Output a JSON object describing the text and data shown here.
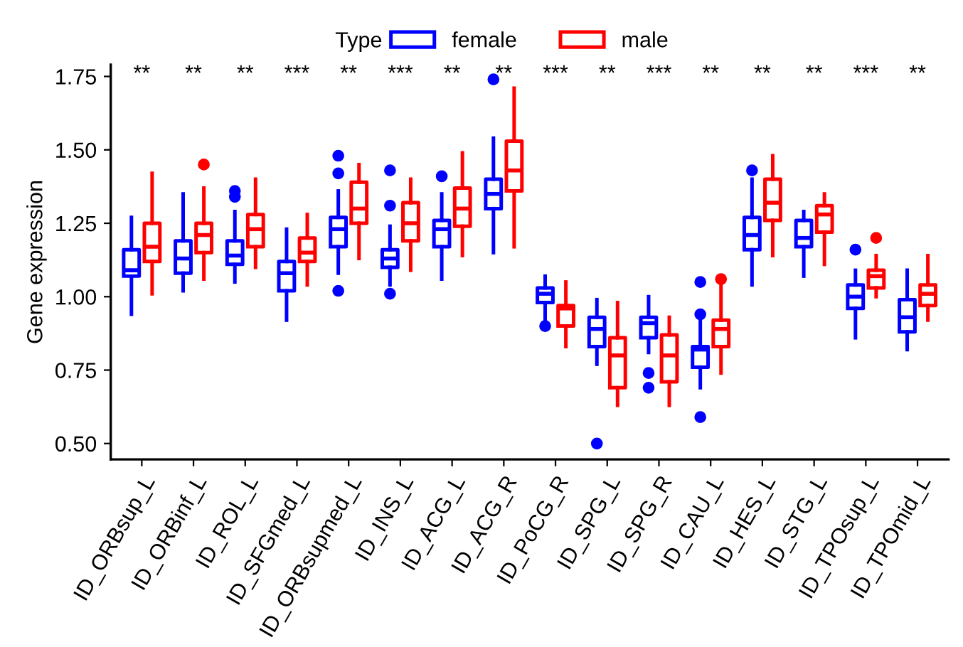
{
  "chart_data": {
    "type": "box",
    "ylabel": "Gene expression",
    "legend_title": "Type",
    "legend": "top",
    "categories": [
      "ID_ORBsup_L",
      "ID_ORBinf_L",
      "ID_ROL_L",
      "ID_SFGmed_L",
      "ID_ORBsupmed_L",
      "ID_INS_L",
      "ID_ACG_L",
      "ID_ACG_R",
      "ID_PoCG_R",
      "ID_SPG_L",
      "ID_SPG_R",
      "ID_CAU_L",
      "ID_HES_L",
      "ID_STG_L",
      "ID_TPOsup_L",
      "ID_TPOmid_L"
    ],
    "ylim": [
      0.446,
      1.79
    ],
    "yticks": [
      {
        "value": 0.5,
        "label": "0.50"
      },
      {
        "value": 0.75,
        "label": "0.75"
      },
      {
        "value": 1.0,
        "label": "1.00"
      },
      {
        "value": 1.25,
        "label": "1.25"
      },
      {
        "value": 1.5,
        "label": "1.50"
      },
      {
        "value": 1.75,
        "label": "1.75"
      }
    ],
    "series": [
      {
        "name": "female",
        "color": "#0000ff",
        "boxes": [
          {
            "low": 0.94,
            "q1": 1.07,
            "median": 1.09,
            "q3": 1.16,
            "high": 1.27
          },
          {
            "low": 1.02,
            "q1": 1.08,
            "median": 1.13,
            "q3": 1.19,
            "high": 1.35
          },
          {
            "low": 1.05,
            "q1": 1.11,
            "median": 1.14,
            "q3": 1.19,
            "high": 1.29,
            "outliers": [
              1.36,
              1.34
            ]
          },
          {
            "low": 0.92,
            "q1": 1.02,
            "median": 1.08,
            "q3": 1.12,
            "high": 1.23
          },
          {
            "low": 1.08,
            "q1": 1.17,
            "median": 1.23,
            "q3": 1.27,
            "high": 1.36,
            "outliers": [
              1.48,
              1.42,
              1.02
            ]
          },
          {
            "low": 1.04,
            "q1": 1.1,
            "median": 1.13,
            "q3": 1.16,
            "high": 1.24,
            "outliers": [
              1.43,
              1.31,
              1.01
            ]
          },
          {
            "low": 1.06,
            "q1": 1.17,
            "median": 1.23,
            "q3": 1.26,
            "high": 1.35,
            "outliers": [
              1.41
            ]
          },
          {
            "low": 1.15,
            "q1": 1.3,
            "median": 1.35,
            "q3": 1.4,
            "high": 1.54,
            "outliers": [
              1.74
            ]
          },
          {
            "low": 0.92,
            "q1": 0.98,
            "median": 1.01,
            "q3": 1.03,
            "high": 1.07,
            "outliers": [
              0.9
            ]
          },
          {
            "low": 0.77,
            "q1": 0.83,
            "median": 0.89,
            "q3": 0.93,
            "high": 0.99,
            "outliers": [
              0.5
            ]
          },
          {
            "low": 0.81,
            "q1": 0.86,
            "median": 0.91,
            "q3": 0.93,
            "high": 1.0,
            "outliers": [
              0.74,
              0.69
            ]
          },
          {
            "low": 0.69,
            "q1": 0.76,
            "median": 0.82,
            "q3": 0.83,
            "high": 0.93,
            "outliers": [
              1.05,
              0.94,
              0.59
            ]
          },
          {
            "low": 1.04,
            "q1": 1.16,
            "median": 1.21,
            "q3": 1.27,
            "high": 1.4,
            "outliers": [
              1.43
            ]
          },
          {
            "low": 1.07,
            "q1": 1.17,
            "median": 1.2,
            "q3": 1.26,
            "high": 1.29
          },
          {
            "low": 0.86,
            "q1": 0.96,
            "median": 1.0,
            "q3": 1.04,
            "high": 1.09,
            "outliers": [
              1.16
            ]
          },
          {
            "low": 0.82,
            "q1": 0.88,
            "median": 0.93,
            "q3": 0.99,
            "high": 1.09
          }
        ]
      },
      {
        "name": "male",
        "color": "#ff0000",
        "boxes": [
          {
            "low": 1.01,
            "q1": 1.12,
            "median": 1.17,
            "q3": 1.25,
            "high": 1.42
          },
          {
            "low": 1.06,
            "q1": 1.15,
            "median": 1.21,
            "q3": 1.25,
            "high": 1.37,
            "outliers": [
              1.45
            ]
          },
          {
            "low": 1.1,
            "q1": 1.17,
            "median": 1.23,
            "q3": 1.28,
            "high": 1.4
          },
          {
            "low": 1.04,
            "q1": 1.12,
            "median": 1.15,
            "q3": 1.2,
            "high": 1.28
          },
          {
            "low": 1.13,
            "q1": 1.25,
            "median": 1.3,
            "q3": 1.39,
            "high": 1.45
          },
          {
            "low": 1.09,
            "q1": 1.19,
            "median": 1.25,
            "q3": 1.32,
            "high": 1.4
          },
          {
            "low": 1.14,
            "q1": 1.24,
            "median": 1.3,
            "q3": 1.37,
            "high": 1.49
          },
          {
            "low": 1.17,
            "q1": 1.36,
            "median": 1.43,
            "q3": 1.53,
            "high": 1.71
          },
          {
            "low": 0.83,
            "q1": 0.9,
            "median": 0.96,
            "q3": 0.97,
            "high": 1.05
          },
          {
            "low": 0.63,
            "q1": 0.69,
            "median": 0.8,
            "q3": 0.86,
            "high": 0.98
          },
          {
            "low": 0.63,
            "q1": 0.71,
            "median": 0.8,
            "q3": 0.87,
            "high": 0.93
          },
          {
            "low": 0.74,
            "q1": 0.83,
            "median": 0.89,
            "q3": 0.92,
            "high": 1.04,
            "outliers": [
              1.06
            ]
          },
          {
            "low": 1.14,
            "q1": 1.26,
            "median": 1.32,
            "q3": 1.4,
            "high": 1.48
          },
          {
            "low": 1.11,
            "q1": 1.22,
            "median": 1.28,
            "q3": 1.31,
            "high": 1.35
          },
          {
            "low": 1.0,
            "q1": 1.03,
            "median": 1.07,
            "q3": 1.09,
            "high": 1.14,
            "outliers": [
              1.2
            ]
          },
          {
            "low": 0.92,
            "q1": 0.97,
            "median": 1.01,
            "q3": 1.04,
            "high": 1.14
          }
        ]
      }
    ],
    "annotations": [
      "**",
      "**",
      "**",
      "***",
      "**",
      "***",
      "**",
      "**",
      "***",
      "**",
      "***",
      "**",
      "**",
      "**",
      "***",
      "**"
    ]
  }
}
